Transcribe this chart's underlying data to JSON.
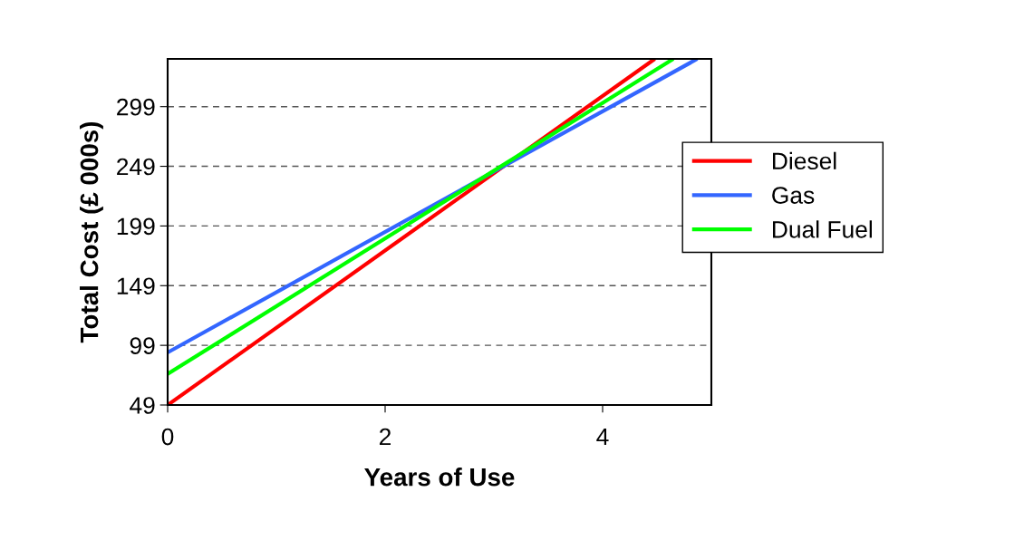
{
  "chart_data": {
    "type": "line",
    "xlabel": "Years of Use",
    "ylabel": "Total Cost (£ 000s)",
    "xlim": [
      0,
      5
    ],
    "xticks": [
      0,
      2,
      4
    ],
    "ylim": [
      49,
      339
    ],
    "yticks": [
      49,
      99,
      149,
      199,
      249,
      299
    ],
    "grid": "y",
    "legend": "right",
    "marker": "none",
    "line_style": "solid",
    "series": [
      {
        "name": "Diesel",
        "color": "#ff0000",
        "x": [
          0,
          4.48
        ],
        "values": [
          49,
          339
        ]
      },
      {
        "name": "Gas",
        "color": "#3366ff",
        "x": [
          0,
          4.87
        ],
        "values": [
          93,
          339
        ]
      },
      {
        "name": "Dual Fuel",
        "color": "#00ff00",
        "x": [
          0,
          4.65
        ],
        "values": [
          75,
          339
        ]
      }
    ]
  }
}
